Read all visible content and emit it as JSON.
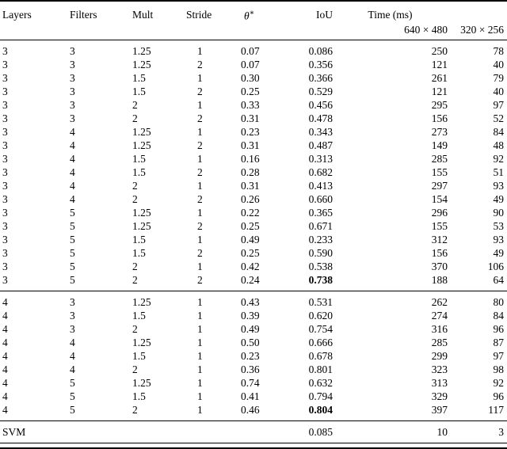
{
  "table": {
    "columns": [
      "layers",
      "filters",
      "mult",
      "stride",
      "theta",
      "iou",
      "t640",
      "t320"
    ],
    "headers": {
      "layers": "Layers",
      "filters": "Filters",
      "mult": "Mult",
      "stride": "Stride",
      "theta_symbol": "θ",
      "theta_sup": "∗",
      "iou": "IoU",
      "time": "Time (ms)",
      "res_640": "640 × 480",
      "res_320": "320 × 256"
    },
    "text_color": "#000000",
    "background_color": "#ffffff",
    "sections": [
      {
        "name": "layers-3",
        "rows": [
          {
            "layers": "3",
            "filters": "3",
            "mult": "1.25",
            "stride": "1",
            "theta": "0.07",
            "iou": "0.086",
            "t640": "250",
            "t320": "78"
          },
          {
            "layers": "3",
            "filters": "3",
            "mult": "1.25",
            "stride": "2",
            "theta": "0.07",
            "iou": "0.356",
            "t640": "121",
            "t320": "40"
          },
          {
            "layers": "3",
            "filters": "3",
            "mult": "1.5",
            "stride": "1",
            "theta": "0.30",
            "iou": "0.366",
            "t640": "261",
            "t320": "79"
          },
          {
            "layers": "3",
            "filters": "3",
            "mult": "1.5",
            "stride": "2",
            "theta": "0.25",
            "iou": "0.529",
            "t640": "121",
            "t320": "40"
          },
          {
            "layers": "3",
            "filters": "3",
            "mult": "2",
            "stride": "1",
            "theta": "0.33",
            "iou": "0.456",
            "t640": "295",
            "t320": "97"
          },
          {
            "layers": "3",
            "filters": "3",
            "mult": "2",
            "stride": "2",
            "theta": "0.31",
            "iou": "0.478",
            "t640": "156",
            "t320": "52"
          },
          {
            "layers": "3",
            "filters": "4",
            "mult": "1.25",
            "stride": "1",
            "theta": "0.23",
            "iou": "0.343",
            "t640": "273",
            "t320": "84"
          },
          {
            "layers": "3",
            "filters": "4",
            "mult": "1.25",
            "stride": "2",
            "theta": "0.31",
            "iou": "0.487",
            "t640": "149",
            "t320": "48"
          },
          {
            "layers": "3",
            "filters": "4",
            "mult": "1.5",
            "stride": "1",
            "theta": "0.16",
            "iou": "0.313",
            "t640": "285",
            "t320": "92"
          },
          {
            "layers": "3",
            "filters": "4",
            "mult": "1.5",
            "stride": "2",
            "theta": "0.28",
            "iou": "0.682",
            "t640": "155",
            "t320": "51"
          },
          {
            "layers": "3",
            "filters": "4",
            "mult": "2",
            "stride": "1",
            "theta": "0.31",
            "iou": "0.413",
            "t640": "297",
            "t320": "93"
          },
          {
            "layers": "3",
            "filters": "4",
            "mult": "2",
            "stride": "2",
            "theta": "0.26",
            "iou": "0.660",
            "t640": "154",
            "t320": "49"
          },
          {
            "layers": "3",
            "filters": "5",
            "mult": "1.25",
            "stride": "1",
            "theta": "0.22",
            "iou": "0.365",
            "t640": "296",
            "t320": "90"
          },
          {
            "layers": "3",
            "filters": "5",
            "mult": "1.25",
            "stride": "2",
            "theta": "0.25",
            "iou": "0.671",
            "t640": "155",
            "t320": "53"
          },
          {
            "layers": "3",
            "filters": "5",
            "mult": "1.5",
            "stride": "1",
            "theta": "0.49",
            "iou": "0.233",
            "t640": "312",
            "t320": "93"
          },
          {
            "layers": "3",
            "filters": "5",
            "mult": "1.5",
            "stride": "2",
            "theta": "0.25",
            "iou": "0.590",
            "t640": "156",
            "t320": "49"
          },
          {
            "layers": "3",
            "filters": "5",
            "mult": "2",
            "stride": "1",
            "theta": "0.42",
            "iou": "0.538",
            "t640": "370",
            "t320": "106"
          },
          {
            "layers": "3",
            "filters": "5",
            "mult": "2",
            "stride": "2",
            "theta": "0.24",
            "iou": "0.738",
            "iou_bold": true,
            "t640": "188",
            "t320": "64"
          }
        ]
      },
      {
        "name": "layers-4",
        "rows": [
          {
            "layers": "4",
            "filters": "3",
            "mult": "1.25",
            "stride": "1",
            "theta": "0.43",
            "iou": "0.531",
            "t640": "262",
            "t320": "80"
          },
          {
            "layers": "4",
            "filters": "3",
            "mult": "1.5",
            "stride": "1",
            "theta": "0.39",
            "iou": "0.620",
            "t640": "274",
            "t320": "84"
          },
          {
            "layers": "4",
            "filters": "3",
            "mult": "2",
            "stride": "1",
            "theta": "0.49",
            "iou": "0.754",
            "t640": "316",
            "t320": "96"
          },
          {
            "layers": "4",
            "filters": "4",
            "mult": "1.25",
            "stride": "1",
            "theta": "0.50",
            "iou": "0.666",
            "t640": "285",
            "t320": "87"
          },
          {
            "layers": "4",
            "filters": "4",
            "mult": "1.5",
            "stride": "1",
            "theta": "0.23",
            "iou": "0.678",
            "t640": "299",
            "t320": "97"
          },
          {
            "layers": "4",
            "filters": "4",
            "mult": "2",
            "stride": "1",
            "theta": "0.36",
            "iou": "0.801",
            "t640": "323",
            "t320": "98"
          },
          {
            "layers": "4",
            "filters": "5",
            "mult": "1.25",
            "stride": "1",
            "theta": "0.74",
            "iou": "0.632",
            "t640": "313",
            "t320": "92"
          },
          {
            "layers": "4",
            "filters": "5",
            "mult": "1.5",
            "stride": "1",
            "theta": "0.41",
            "iou": "0.794",
            "t640": "329",
            "t320": "96"
          },
          {
            "layers": "4",
            "filters": "5",
            "mult": "2",
            "stride": "1",
            "theta": "0.46",
            "iou": "0.804",
            "iou_bold": true,
            "t640": "397",
            "t320": "117"
          }
        ]
      },
      {
        "name": "svm",
        "rows": [
          {
            "layers": "SVM",
            "filters": "",
            "mult": "",
            "stride": "",
            "theta": "",
            "iou": "0.085",
            "t640": "10",
            "t320": "3"
          }
        ]
      }
    ]
  }
}
